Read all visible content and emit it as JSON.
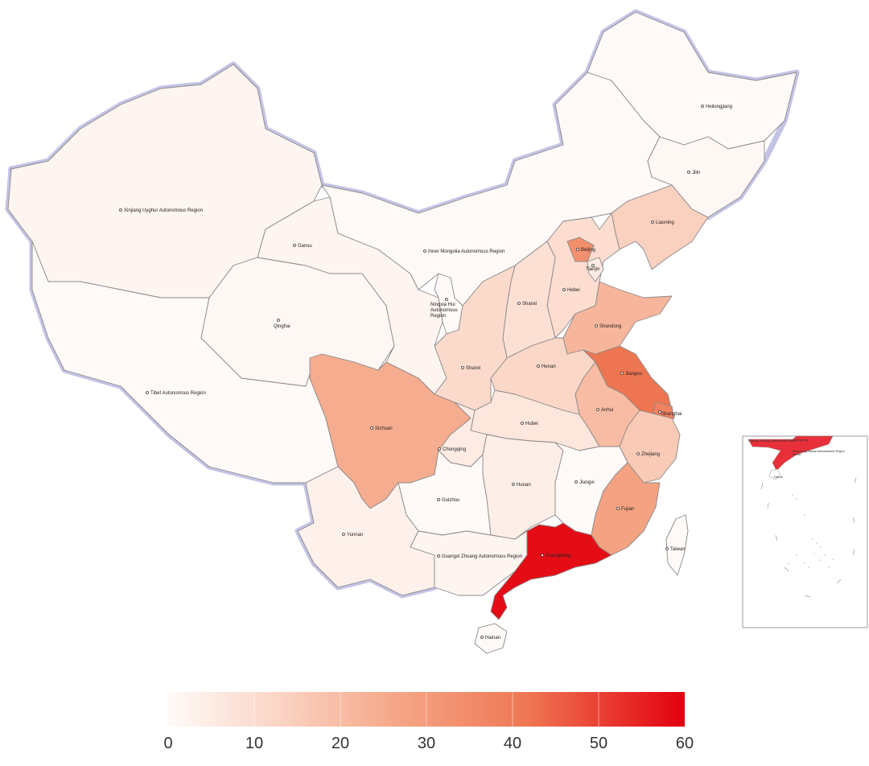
{
  "map": {
    "provinces": [
      {
        "id": "xinjiang",
        "label": "Xinjiang Uyghur Autonomous Region",
        "value": 2
      },
      {
        "id": "tibet",
        "label": "Tibet Autonomous Region",
        "value": 0
      },
      {
        "id": "qinghai",
        "label": "Qinghai",
        "value": 1
      },
      {
        "id": "gansu",
        "label": "Gansu",
        "value": 2
      },
      {
        "id": "inner_mongolia",
        "label": "Inner Mongolia Autonomous Region",
        "value": 0
      },
      {
        "id": "ningxia",
        "label": "Ningxia Hui Autonomous Region",
        "value": 0
      },
      {
        "id": "heilongjiang",
        "label": "Heilongjiang",
        "value": 0
      },
      {
        "id": "jilin",
        "label": "Jilin",
        "value": 1
      },
      {
        "id": "liaoning",
        "label": "Liaoning",
        "value": 14
      },
      {
        "id": "beijing",
        "label": "Beijing",
        "value": 34
      },
      {
        "id": "tianjin",
        "label": "Tianjin",
        "value": 5
      },
      {
        "id": "hebei",
        "label": "Hebei",
        "value": 10
      },
      {
        "id": "shanxi",
        "label": "Shanxi",
        "value": 9
      },
      {
        "id": "shandong",
        "label": "Shandong",
        "value": 22
      },
      {
        "id": "shaanxi",
        "label": "Shanxi",
        "value": 11
      },
      {
        "id": "henan",
        "label": "Henan",
        "value": 12
      },
      {
        "id": "jiangsu",
        "label": "Jiangsu",
        "value": 42
      },
      {
        "id": "shanghai",
        "label": "Shanghai",
        "value": 38
      },
      {
        "id": "anhui",
        "label": "Anhui",
        "value": 20
      },
      {
        "id": "hubei",
        "label": "Hubei",
        "value": 7
      },
      {
        "id": "sichuan",
        "label": "Sichuan",
        "value": 25
      },
      {
        "id": "chongqing",
        "label": "Chongqing",
        "value": 5
      },
      {
        "id": "zhejiang",
        "label": "Zhejiang",
        "value": 16
      },
      {
        "id": "hunan",
        "label": "Hunan",
        "value": 4
      },
      {
        "id": "jiangxi",
        "label": "Jiangxi",
        "value": 0
      },
      {
        "id": "fujian",
        "label": "Fujian",
        "value": 28
      },
      {
        "id": "guizhou",
        "label": "Guizhou",
        "value": 0
      },
      {
        "id": "yunnan",
        "label": "Yunnan",
        "value": 3
      },
      {
        "id": "guangxi",
        "label": "Guangxi Zhuang Autonomous Region",
        "value": 2
      },
      {
        "id": "guangdong",
        "label": "Guangdong",
        "value": 58
      },
      {
        "id": "hainan",
        "label": "Hainan",
        "value": 0
      },
      {
        "id": "taiwan",
        "label": "Taiwan",
        "value": 0
      }
    ]
  },
  "legend": {
    "min": 0,
    "max": 60,
    "ticks": [
      "0",
      "10",
      "20",
      "30",
      "40",
      "50",
      "60"
    ],
    "color_low": "#ffffff",
    "color_high": "#e3000f"
  },
  "inset": {
    "labels": [
      "Guangxi Zhuang Autonomous Region",
      "Guangdong",
      "Hong Kong Special Administrative Region",
      "Macao",
      "Hainan"
    ]
  }
}
